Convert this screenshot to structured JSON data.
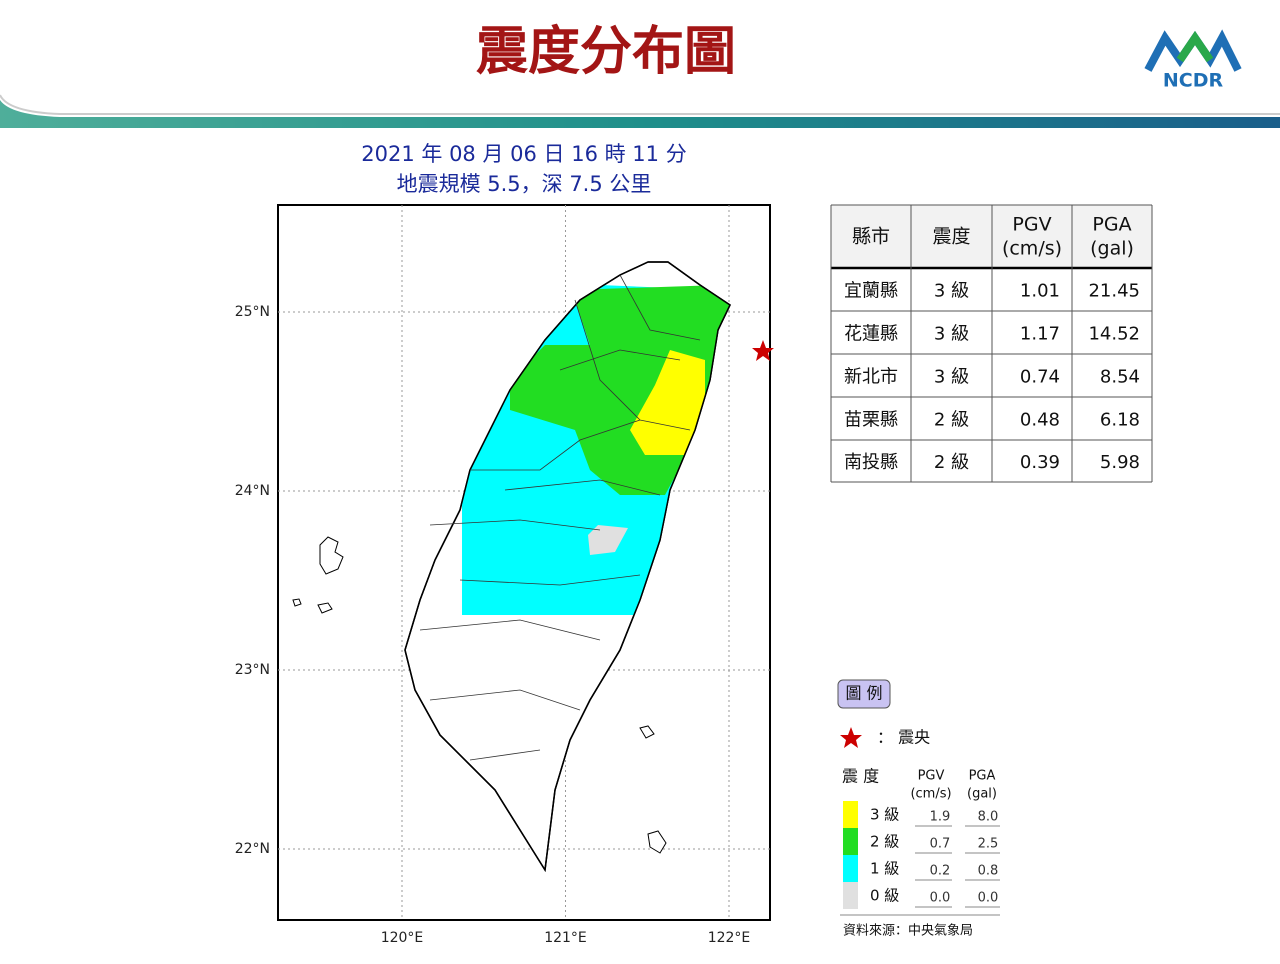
{
  "header": {
    "title": "震度分布圖",
    "logo": "NCDR"
  },
  "map": {
    "title_lines": [
      "2021 年 08 月 06 日 16 時 11 分",
      "地震規模 5.5，深 7.5 公里"
    ],
    "lat_ticks": [
      {
        "value": 25,
        "label": "25°N"
      },
      {
        "value": 24,
        "label": "24°N"
      },
      {
        "value": 23,
        "label": "23°N"
      },
      {
        "value": 22,
        "label": "22°N"
      }
    ],
    "lon_ticks": [
      {
        "value": 120,
        "label": "120°E"
      },
      {
        "value": 121,
        "label": "121°E"
      },
      {
        "value": 122,
        "label": "122°E"
      }
    ]
  },
  "table": {
    "headers": [
      [
        "縣市"
      ],
      [
        "震度"
      ],
      [
        "PGV",
        "(cm/s)"
      ],
      [
        "PGA",
        "(gal)"
      ]
    ],
    "rows": [
      [
        "宜蘭縣",
        "3 級",
        1.01,
        21.45
      ],
      [
        "花蓮縣",
        "3 級",
        1.17,
        14.52
      ],
      [
        "新北市",
        "3 級",
        0.74,
        8.54
      ],
      [
        "苗栗縣",
        "2 級",
        0.48,
        6.18
      ],
      [
        "南投縣",
        "2 級",
        0.39,
        5.98
      ]
    ]
  },
  "legend": {
    "title": "圖 例",
    "epicenter_label": "：  震央",
    "intensity_header": "震 度",
    "pgv_header": [
      "PGV",
      "(cm/s)"
    ],
    "pga_header": [
      "PGA",
      "(gal)"
    ],
    "levels": [
      {
        "label": "3 級",
        "color": "#ffff00",
        "pgv": "1.9",
        "pga": "8.0"
      },
      {
        "label": "2 級",
        "color": "#22dd22",
        "pgv": "0.7",
        "pga": "2.5"
      },
      {
        "label": "1 級",
        "color": "#00ffff",
        "pgv": "0.2",
        "pga": "0.8"
      },
      {
        "label": "0 級",
        "color": "#e0e0e0",
        "pgv": "0.0",
        "pga": "0.0"
      }
    ],
    "source": "資料來源：中央氣象局"
  }
}
